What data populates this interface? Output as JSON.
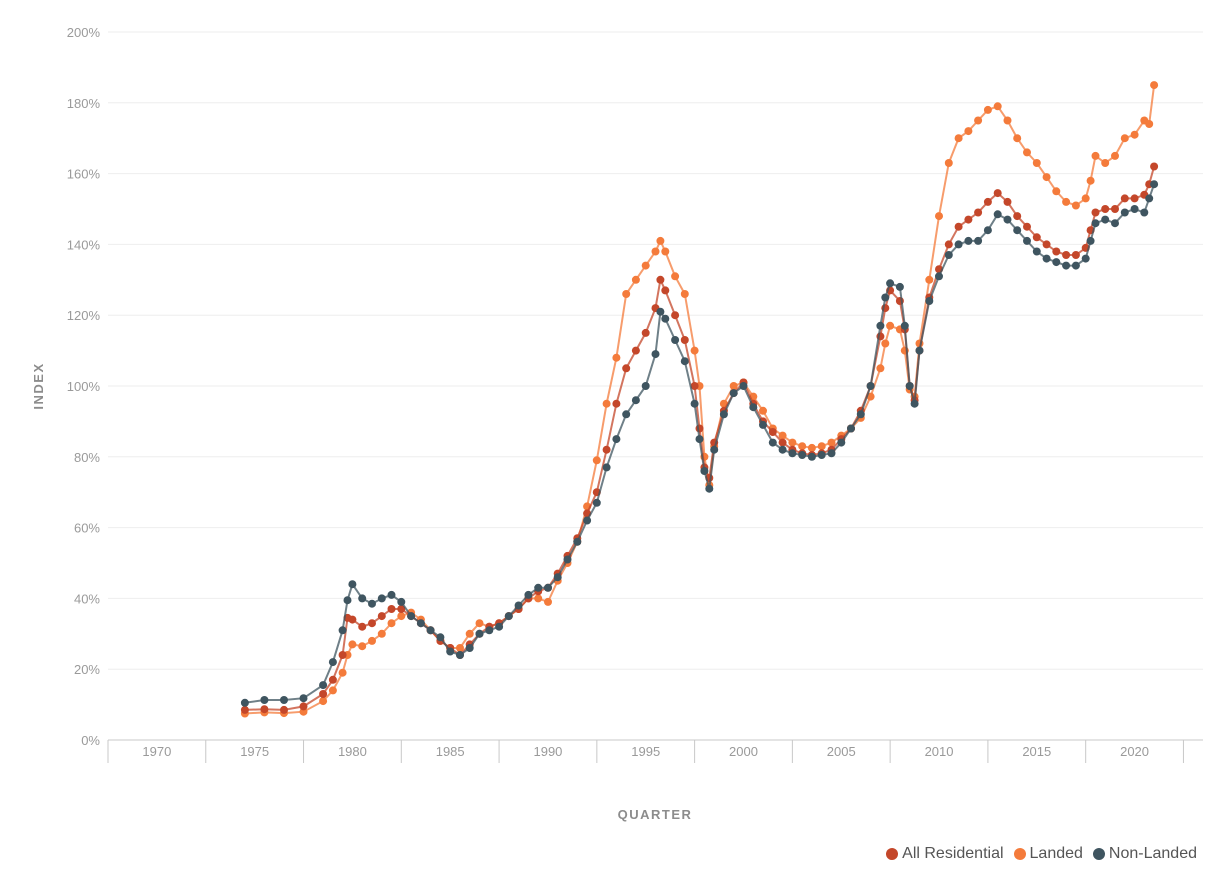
{
  "chart_data": {
    "type": "line",
    "xlabel": "QUARTER",
    "ylabel": "INDEX",
    "xlim": [
      1968,
      2024
    ],
    "ylim": [
      0,
      200
    ],
    "x_ticks": [
      "1970",
      "1975",
      "1980",
      "1985",
      "1990",
      "1995",
      "2000",
      "2005",
      "2010",
      "2015",
      "2020"
    ],
    "y_ticks": [
      "0%",
      "20%",
      "40%",
      "60%",
      "80%",
      "100%",
      "120%",
      "140%",
      "160%",
      "180%",
      "200%"
    ],
    "grid": true,
    "legend_position": "bottom-right",
    "series": [
      {
        "name": "All Residential",
        "color": "#c4472a",
        "points": [
          [
            1975,
            8.5
          ],
          [
            1976,
            8.7
          ],
          [
            1977,
            8.5
          ],
          [
            1978,
            9.5
          ],
          [
            1979,
            13
          ],
          [
            1979.5,
            17
          ],
          [
            1980,
            24
          ],
          [
            1980.25,
            34.5
          ],
          [
            1980.5,
            34
          ],
          [
            1981,
            32
          ],
          [
            1981.5,
            33
          ],
          [
            1982,
            35
          ],
          [
            1982.5,
            37
          ],
          [
            1983,
            37
          ],
          [
            1983.5,
            35
          ],
          [
            1984,
            33
          ],
          [
            1984.5,
            31
          ],
          [
            1985,
            28
          ],
          [
            1985.5,
            26
          ],
          [
            1986,
            24
          ],
          [
            1986.5,
            27
          ],
          [
            1987,
            30
          ],
          [
            1987.5,
            32
          ],
          [
            1988,
            33
          ],
          [
            1988.5,
            35
          ],
          [
            1989,
            37
          ],
          [
            1989.5,
            40
          ],
          [
            1990,
            42
          ],
          [
            1990.5,
            43
          ],
          [
            1991,
            47
          ],
          [
            1991.5,
            52
          ],
          [
            1992,
            57
          ],
          [
            1992.5,
            64
          ],
          [
            1993,
            70
          ],
          [
            1993.5,
            82
          ],
          [
            1994,
            95
          ],
          [
            1994.5,
            105
          ],
          [
            1995,
            110
          ],
          [
            1995.5,
            115
          ],
          [
            1996,
            122
          ],
          [
            1996.25,
            130
          ],
          [
            1996.5,
            127
          ],
          [
            1997,
            120
          ],
          [
            1997.5,
            113
          ],
          [
            1998,
            100
          ],
          [
            1998.25,
            88
          ],
          [
            1998.5,
            77
          ],
          [
            1998.75,
            74
          ],
          [
            1999,
            84
          ],
          [
            1999.5,
            93
          ],
          [
            2000,
            98
          ],
          [
            2000.5,
            101
          ],
          [
            2001,
            95
          ],
          [
            2001.5,
            90
          ],
          [
            2002,
            87
          ],
          [
            2002.5,
            84
          ],
          [
            2003,
            82
          ],
          [
            2003.5,
            81
          ],
          [
            2004,
            80.5
          ],
          [
            2004.5,
            81
          ],
          [
            2005,
            82
          ],
          [
            2005.5,
            85
          ],
          [
            2006,
            88
          ],
          [
            2006.5,
            93
          ],
          [
            2007,
            100
          ],
          [
            2007.5,
            114
          ],
          [
            2007.75,
            122
          ],
          [
            2008,
            127
          ],
          [
            2008.5,
            124
          ],
          [
            2008.75,
            116
          ],
          [
            2009,
            100
          ],
          [
            2009.25,
            96
          ],
          [
            2009.5,
            110
          ],
          [
            2010,
            125
          ],
          [
            2010.5,
            133
          ],
          [
            2011,
            140
          ],
          [
            2011.5,
            145
          ],
          [
            2012,
            147
          ],
          [
            2012.5,
            149
          ],
          [
            2013,
            152
          ],
          [
            2013.5,
            154.5
          ],
          [
            2014,
            152
          ],
          [
            2014.5,
            148
          ],
          [
            2015,
            145
          ],
          [
            2015.5,
            142
          ],
          [
            2016,
            140
          ],
          [
            2016.5,
            138
          ],
          [
            2017,
            137
          ],
          [
            2017.5,
            137
          ],
          [
            2018,
            139
          ],
          [
            2018.25,
            144
          ],
          [
            2018.5,
            149
          ],
          [
            2019,
            150
          ],
          [
            2019.5,
            150
          ],
          [
            2020,
            153
          ],
          [
            2020.5,
            153
          ],
          [
            2021,
            154
          ],
          [
            2021.25,
            157
          ],
          [
            2021.5,
            162
          ]
        ]
      },
      {
        "name": "Landed",
        "color": "#f47b3b",
        "points": [
          [
            1975,
            7.5
          ],
          [
            1976,
            7.8
          ],
          [
            1977,
            7.6
          ],
          [
            1978,
            8.0
          ],
          [
            1979,
            11
          ],
          [
            1979.5,
            14
          ],
          [
            1980,
            19
          ],
          [
            1980.25,
            24
          ],
          [
            1980.5,
            27
          ],
          [
            1981,
            26.5
          ],
          [
            1981.5,
            28
          ],
          [
            1982,
            30
          ],
          [
            1982.5,
            33
          ],
          [
            1983,
            35
          ],
          [
            1983.5,
            36
          ],
          [
            1984,
            34
          ],
          [
            1984.5,
            31
          ],
          [
            1985,
            28
          ],
          [
            1985.5,
            26
          ],
          [
            1986,
            26
          ],
          [
            1986.5,
            30
          ],
          [
            1987,
            33
          ],
          [
            1987.5,
            32
          ],
          [
            1988,
            33
          ],
          [
            1988.5,
            35
          ],
          [
            1989,
            37
          ],
          [
            1989.5,
            40
          ],
          [
            1990,
            40
          ],
          [
            1990.5,
            39
          ],
          [
            1991,
            45
          ],
          [
            1991.5,
            50
          ],
          [
            1992,
            56
          ],
          [
            1992.5,
            66
          ],
          [
            1993,
            79
          ],
          [
            1993.5,
            95
          ],
          [
            1994,
            108
          ],
          [
            1994.5,
            126
          ],
          [
            1995,
            130
          ],
          [
            1995.5,
            134
          ],
          [
            1996,
            138
          ],
          [
            1996.25,
            141
          ],
          [
            1996.5,
            138
          ],
          [
            1997,
            131
          ],
          [
            1997.5,
            126
          ],
          [
            1998,
            110
          ],
          [
            1998.25,
            100
          ],
          [
            1998.5,
            80
          ],
          [
            1998.75,
            72
          ],
          [
            1999,
            83
          ],
          [
            1999.5,
            95
          ],
          [
            2000,
            100
          ],
          [
            2000.5,
            101
          ],
          [
            2001,
            97
          ],
          [
            2001.5,
            93
          ],
          [
            2002,
            88
          ],
          [
            2002.5,
            86
          ],
          [
            2003,
            84
          ],
          [
            2003.5,
            83
          ],
          [
            2004,
            82.5
          ],
          [
            2004.5,
            83
          ],
          [
            2005,
            84
          ],
          [
            2005.5,
            86
          ],
          [
            2006,
            88
          ],
          [
            2006.5,
            91
          ],
          [
            2007,
            97
          ],
          [
            2007.5,
            105
          ],
          [
            2007.75,
            112
          ],
          [
            2008,
            117
          ],
          [
            2008.5,
            116
          ],
          [
            2008.75,
            110
          ],
          [
            2009,
            99
          ],
          [
            2009.25,
            97
          ],
          [
            2009.5,
            112
          ],
          [
            2010,
            130
          ],
          [
            2010.5,
            148
          ],
          [
            2011,
            163
          ],
          [
            2011.5,
            170
          ],
          [
            2012,
            172
          ],
          [
            2012.5,
            175
          ],
          [
            2013,
            178
          ],
          [
            2013.5,
            179
          ],
          [
            2014,
            175
          ],
          [
            2014.5,
            170
          ],
          [
            2015,
            166
          ],
          [
            2015.5,
            163
          ],
          [
            2016,
            159
          ],
          [
            2016.5,
            155
          ],
          [
            2017,
            152
          ],
          [
            2017.5,
            151
          ],
          [
            2018,
            153
          ],
          [
            2018.25,
            158
          ],
          [
            2018.5,
            165
          ],
          [
            2019,
            163
          ],
          [
            2019.5,
            165
          ],
          [
            2020,
            170
          ],
          [
            2020.5,
            171
          ],
          [
            2021,
            175
          ],
          [
            2021.25,
            174
          ],
          [
            2021.5,
            185
          ]
        ]
      },
      {
        "name": "Non-Landed",
        "color": "#3f5560",
        "points": [
          [
            1975,
            10.5
          ],
          [
            1976,
            11.3
          ],
          [
            1977,
            11.3
          ],
          [
            1978,
            11.8
          ],
          [
            1979,
            15.5
          ],
          [
            1979.5,
            22
          ],
          [
            1980,
            31
          ],
          [
            1980.25,
            39.5
          ],
          [
            1980.5,
            44
          ],
          [
            1981,
            40
          ],
          [
            1981.5,
            38.5
          ],
          [
            1982,
            40
          ],
          [
            1982.5,
            41
          ],
          [
            1983,
            39
          ],
          [
            1983.5,
            35
          ],
          [
            1984,
            33
          ],
          [
            1984.5,
            31
          ],
          [
            1985,
            29
          ],
          [
            1985.5,
            25
          ],
          [
            1986,
            24
          ],
          [
            1986.5,
            26
          ],
          [
            1987,
            30
          ],
          [
            1987.5,
            31
          ],
          [
            1988,
            32
          ],
          [
            1988.5,
            35
          ],
          [
            1989,
            38
          ],
          [
            1989.5,
            41
          ],
          [
            1990,
            43
          ],
          [
            1990.5,
            43
          ],
          [
            1991,
            46
          ],
          [
            1991.5,
            51
          ],
          [
            1992,
            56
          ],
          [
            1992.5,
            62
          ],
          [
            1993,
            67
          ],
          [
            1993.5,
            77
          ],
          [
            1994,
            85
          ],
          [
            1994.5,
            92
          ],
          [
            1995,
            96
          ],
          [
            1995.5,
            100
          ],
          [
            1996,
            109
          ],
          [
            1996.25,
            121
          ],
          [
            1996.5,
            119
          ],
          [
            1997,
            113
          ],
          [
            1997.5,
            107
          ],
          [
            1998,
            95
          ],
          [
            1998.25,
            85
          ],
          [
            1998.5,
            76
          ],
          [
            1998.75,
            71
          ],
          [
            1999,
            82
          ],
          [
            1999.5,
            92
          ],
          [
            2000,
            98
          ],
          [
            2000.5,
            100
          ],
          [
            2001,
            94
          ],
          [
            2001.5,
            89
          ],
          [
            2002,
            84
          ],
          [
            2002.5,
            82
          ],
          [
            2003,
            81
          ],
          [
            2003.5,
            80.5
          ],
          [
            2004,
            80
          ],
          [
            2004.5,
            80.5
          ],
          [
            2005,
            81
          ],
          [
            2005.5,
            84
          ],
          [
            2006,
            88
          ],
          [
            2006.5,
            92
          ],
          [
            2007,
            100
          ],
          [
            2007.5,
            117
          ],
          [
            2007.75,
            125
          ],
          [
            2008,
            129
          ],
          [
            2008.5,
            128
          ],
          [
            2008.75,
            117
          ],
          [
            2009,
            100
          ],
          [
            2009.25,
            95
          ],
          [
            2009.5,
            110
          ],
          [
            2010,
            124
          ],
          [
            2010.5,
            131
          ],
          [
            2011,
            137
          ],
          [
            2011.5,
            140
          ],
          [
            2012,
            141
          ],
          [
            2012.5,
            141
          ],
          [
            2013,
            144
          ],
          [
            2013.5,
            148.5
          ],
          [
            2014,
            147
          ],
          [
            2014.5,
            144
          ],
          [
            2015,
            141
          ],
          [
            2015.5,
            138
          ],
          [
            2016,
            136
          ],
          [
            2016.5,
            135
          ],
          [
            2017,
            134
          ],
          [
            2017.5,
            134
          ],
          [
            2018,
            136
          ],
          [
            2018.25,
            141
          ],
          [
            2018.5,
            146
          ],
          [
            2019,
            147
          ],
          [
            2019.5,
            146
          ],
          [
            2020,
            149
          ],
          [
            2020.5,
            150
          ],
          [
            2021,
            149
          ],
          [
            2021.25,
            153
          ],
          [
            2021.5,
            157
          ]
        ]
      }
    ]
  }
}
